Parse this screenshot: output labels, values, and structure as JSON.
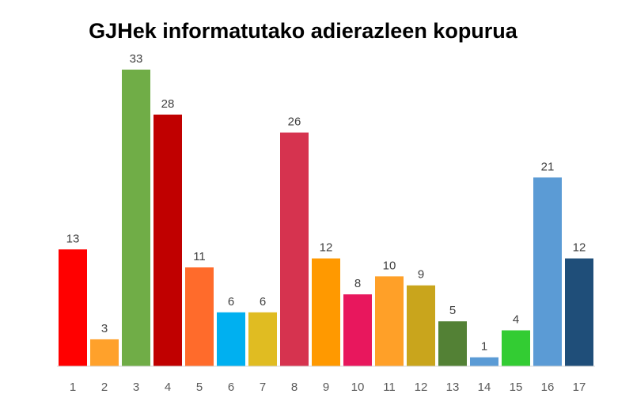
{
  "chart_data": {
    "type": "bar",
    "title": "GJHek informatutako adierazleen kopurua",
    "xlabel": "",
    "ylabel": "",
    "categories": [
      "1",
      "2",
      "3",
      "4",
      "5",
      "6",
      "7",
      "8",
      "9",
      "10",
      "11",
      "12",
      "13",
      "14",
      "15",
      "16",
      "17"
    ],
    "values": [
      13,
      3,
      33,
      28,
      11,
      6,
      6,
      26,
      12,
      8,
      10,
      9,
      5,
      1,
      4,
      21,
      12
    ],
    "colors": [
      "#ff0000",
      "#ffa12b",
      "#70ad47",
      "#c00000",
      "#ff6b2b",
      "#00b0f0",
      "#e0bc22",
      "#d6334f",
      "#ff9900",
      "#e8175d",
      "#ffa028",
      "#c9a51c",
      "#538135",
      "#5b9bd5",
      "#33cc33",
      "#5b9bd5",
      "#1f4e79"
    ],
    "ylim": [
      0,
      33
    ],
    "grid": false,
    "legend": "none",
    "data_labels": true
  }
}
